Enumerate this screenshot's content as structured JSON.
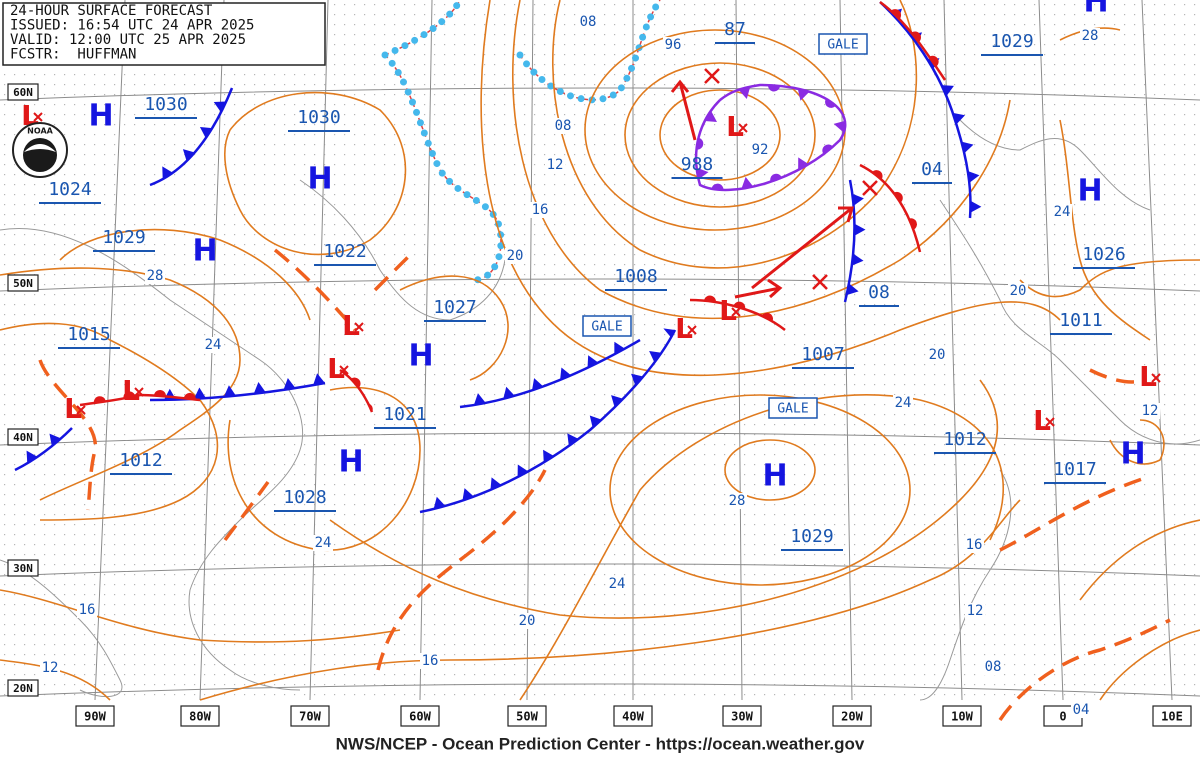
{
  "header": {
    "lines": [
      "24-HOUR SURFACE FORECAST",
      "ISSUED: 16:54 UTC 24 APR 2025",
      "VALID: 12:00 UTC 25 APR 2025",
      "FCSTR:  HUFFMAN"
    ]
  },
  "logo_text": "NOAA",
  "latitude_labels": [
    "60N",
    "50N",
    "40N",
    "30N",
    "20N"
  ],
  "longitude_labels": [
    "90W",
    "80W",
    "70W",
    "60W",
    "50W",
    "40W",
    "30W",
    "20W",
    "10W",
    "0",
    "10E"
  ],
  "pressure_centers": [
    "1030",
    "1030",
    "1024",
    "1029",
    "1022",
    "1027",
    "1015",
    "1021",
    "1012",
    "1028",
    "87",
    "988",
    "1008",
    "1007",
    "08",
    "04",
    "1029",
    "1026",
    "1011",
    "1012",
    "1017",
    "1029"
  ],
  "highs": [
    "H",
    "H",
    "H",
    "H",
    "H",
    "H",
    "H",
    "H",
    "H"
  ],
  "lows": [
    "L",
    "L",
    "L",
    "L",
    "L",
    "L",
    "L",
    "L",
    "L",
    "L"
  ],
  "isobar_labels": [
    "08",
    "96",
    "08",
    "12",
    "16",
    "92",
    "20",
    "28",
    "24",
    "24",
    "20",
    "16",
    "16",
    "12",
    "24",
    "28",
    "24",
    "20",
    "20",
    "24",
    "28",
    "12",
    "16",
    "12",
    "08",
    "04"
  ],
  "gale_warnings": [
    "GALE",
    "GALE",
    "GALE"
  ],
  "footer": "NWS/NCEP - Ocean Prediction Center - https://ocean.weather.gov"
}
